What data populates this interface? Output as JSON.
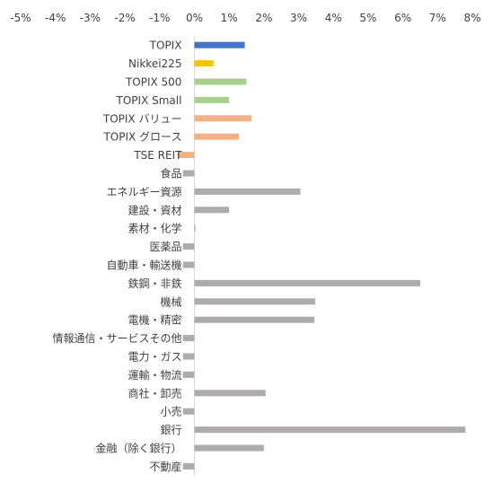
{
  "chart_data": {
    "type": "bar",
    "orientation": "horizontal",
    "title": "",
    "xlabel": "",
    "ylabel": "",
    "xlim": [
      -5,
      8
    ],
    "x_ticks": [
      -5,
      -4,
      -3,
      -2,
      -1,
      0,
      1,
      2,
      3,
      4,
      5,
      6,
      7,
      8
    ],
    "x_tick_labels": [
      "-5%",
      "-4%",
      "-3%",
      "-2%",
      "-1%",
      "0%",
      "1%",
      "2%",
      "3%",
      "4%",
      "5%",
      "6%",
      "7%",
      "8%"
    ],
    "x_axis_position": "top",
    "grid": false,
    "legend": "none",
    "categories": [
      "TOPIX",
      "Nikkei225",
      "TOPIX 500",
      "TOPIX Small",
      "TOPIX バリュー",
      "TOPIX グロース",
      "TSE REIT",
      "食品",
      "エネルギー資源",
      "建設・資材",
      "素材・化学",
      "医薬品",
      "自動車・輸送機",
      "鉄鋼・非鉄",
      "機械",
      "電機・精密",
      "情報通信・サービスその他",
      "電力・ガス",
      "運輸・物流",
      "商社・卸売",
      "小売",
      "銀行",
      "金融（除く銀行）",
      "不動産"
    ],
    "values": [
      1.45,
      0.55,
      1.5,
      1.0,
      1.65,
      1.28,
      -0.48,
      -0.33,
      3.05,
      1.0,
      0.03,
      -0.33,
      -0.33,
      6.5,
      3.48,
      3.45,
      -0.33,
      -0.33,
      -0.33,
      2.05,
      -0.33,
      7.8,
      2.0,
      -0.33
    ],
    "colors": [
      "#4472c4",
      "#ffc000",
      "#a9d18e",
      "#a9d18e",
      "#f4b183",
      "#f4b183",
      "#f4b183",
      "#afabab",
      "#afabab",
      "#afabab",
      "#afabab",
      "#afabab",
      "#afabab",
      "#afabab",
      "#afabab",
      "#afabab",
      "#afabab",
      "#afabab",
      "#afabab",
      "#afabab",
      "#afabab",
      "#afabab",
      "#afabab",
      "#afabab"
    ]
  }
}
